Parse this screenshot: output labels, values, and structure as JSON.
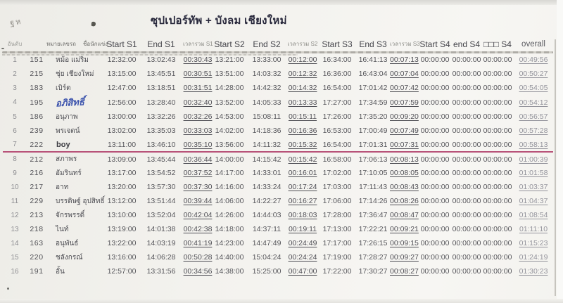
{
  "page": {
    "title": "ซุปเปอร์ทัพ + บังลม เชียงใหม่",
    "pencil_note": "ฐห",
    "ink_mark": "๑"
  },
  "colors": {
    "divider_line": "#b85379",
    "handwriting_blue": "#3d54ad",
    "paper": "#f3f2ee"
  },
  "table": {
    "headers": {
      "rank": "อันดับ",
      "car_number": "หมายเลขรถ",
      "racer_name": "ชื่อนักแข่ง",
      "start_s1": "Start S1",
      "end_s1": "End S1",
      "total_s1": "เวลารวม S1",
      "start_s2": "Start S2",
      "end_s2": "End S2",
      "total_s2": "เวลารวม S2",
      "start_s3": "Start S3",
      "end_s3": "End S3",
      "total_s3": "เวลารวม S3",
      "start_s4": "Start S4",
      "end_s4": "end S4",
      "total_s4": "□□□ S4",
      "overall": "overall"
    },
    "rows": [
      {
        "rank": "1",
        "car": "151",
        "name": "หม้อ แม่ริม",
        "name_style": "print",
        "times": [
          "12:32:00",
          "13:02:43",
          "00:30:43",
          "13:21:00",
          "13:33:00",
          "00:12:00",
          "16:34:00",
          "16:41:13",
          "00:07:13",
          "00:00:00",
          "00:00:00",
          "00:00:00"
        ],
        "overall": "00:49:56",
        "divider_below": false
      },
      {
        "rank": "2",
        "car": "215",
        "name": "ชุ่ย เชียงใหม่",
        "name_style": "print",
        "times": [
          "13:15:00",
          "13:45:51",
          "00:30:51",
          "13:51:00",
          "14:03:32",
          "00:12:32",
          "16:36:00",
          "16:43:04",
          "00:07:04",
          "00:00:00",
          "00:00:00",
          "00:00:00"
        ],
        "overall": "00:50:27",
        "divider_below": false
      },
      {
        "rank": "3",
        "car": "183",
        "name": "เบิร์ด",
        "name_style": "print",
        "times": [
          "12:47:00",
          "13:18:51",
          "00:31:51",
          "14:28:00",
          "14:42:32",
          "00:14:32",
          "16:54:00",
          "17:01:42",
          "00:07:42",
          "00:00:00",
          "00:00:00",
          "00:00:00"
        ],
        "overall": "00:54:05",
        "divider_below": false
      },
      {
        "rank": "4",
        "car": "195",
        "name": "อภิสิทธิ์",
        "name_style": "handwritten",
        "times": [
          "12:56:00",
          "13:28:40",
          "00:32:40",
          "13:52:00",
          "14:05:33",
          "00:13:33",
          "17:27:00",
          "17:34:59",
          "00:07:59",
          "00:00:00",
          "00:00:00",
          "00:00:00"
        ],
        "overall": "00:54:12",
        "divider_below": false
      },
      {
        "rank": "5",
        "car": "186",
        "name": "อนุภาพ",
        "name_style": "print",
        "times": [
          "13:00:00",
          "13:32:26",
          "00:32:26",
          "14:53:00",
          "15:08:11",
          "00:15:11",
          "17:26:00",
          "17:35:20",
          "00:09:20",
          "00:00:00",
          "00:00:00",
          "00:00:00"
        ],
        "overall": "00:56:57",
        "divider_below": false
      },
      {
        "rank": "6",
        "car": "239",
        "name": "พรเจตน์",
        "name_style": "print",
        "times": [
          "13:02:00",
          "13:35:03",
          "00:33:03",
          "14:02:00",
          "14:18:36",
          "00:16:36",
          "16:53:00",
          "17:00:49",
          "00:07:49",
          "00:00:00",
          "00:00:00",
          "00:00:00"
        ],
        "overall": "00:57:28",
        "divider_below": false
      },
      {
        "rank": "7",
        "car": "222",
        "name": "boy",
        "name_style": "latin",
        "times": [
          "13:11:00",
          "13:46:10",
          "00:35:10",
          "13:56:00",
          "14:11:32",
          "00:15:32",
          "16:54:00",
          "17:01:31",
          "00:07:31",
          "00:00:00",
          "00:00:00",
          "00:00:00"
        ],
        "overall": "00:58:13",
        "divider_below": true
      },
      {
        "rank": "8",
        "car": "212",
        "name": "สภาพร",
        "name_style": "print",
        "times": [
          "13:09:00",
          "13:45:44",
          "00:36:44",
          "14:00:00",
          "14:15:42",
          "00:15:42",
          "16:58:00",
          "17:06:13",
          "00:08:13",
          "00:00:00",
          "00:00:00",
          "00:00:00"
        ],
        "overall": "01:00:39",
        "divider_below": false
      },
      {
        "rank": "9",
        "car": "216",
        "name": "อัมรินทร์",
        "name_style": "print",
        "times": [
          "13:17:00",
          "13:54:52",
          "00:37:52",
          "14:17:00",
          "14:33:01",
          "00:16:01",
          "17:02:00",
          "17:10:05",
          "00:08:05",
          "00:00:00",
          "00:00:00",
          "00:00:00"
        ],
        "overall": "01:01:58",
        "divider_below": false
      },
      {
        "rank": "10",
        "car": "217",
        "name": "อาท",
        "name_style": "print",
        "times": [
          "13:20:00",
          "13:57:30",
          "00:37:30",
          "14:16:00",
          "14:33:24",
          "00:17:24",
          "17:03:00",
          "17:11:43",
          "00:08:43",
          "00:00:00",
          "00:00:00",
          "00:00:00"
        ],
        "overall": "01:03:37",
        "divider_below": false
      },
      {
        "rank": "11",
        "car": "229",
        "name": "บรรดิษฐ์ อุปสิทธิ์",
        "name_style": "print",
        "times": [
          "13:12:00",
          "13:51:44",
          "00:39:44",
          "14:06:00",
          "14:22:27",
          "00:16:27",
          "17:06:00",
          "17:14:26",
          "00:08:26",
          "00:00:00",
          "00:00:00",
          "00:00:00"
        ],
        "overall": "01:04:37",
        "divider_below": false
      },
      {
        "rank": "12",
        "car": "213",
        "name": "จักรพรรดิ์",
        "name_style": "print",
        "times": [
          "13:10:00",
          "13:52:04",
          "00:42:04",
          "14:26:00",
          "14:44:03",
          "00:18:03",
          "17:28:00",
          "17:36:47",
          "00:08:47",
          "00:00:00",
          "00:00:00",
          "00:00:00"
        ],
        "overall": "01:08:54",
        "divider_below": false
      },
      {
        "rank": "13",
        "car": "218",
        "name": "ไนท์",
        "name_style": "print",
        "times": [
          "13:19:00",
          "14:01:38",
          "00:42:38",
          "14:18:00",
          "14:37:11",
          "00:19:11",
          "17:13:00",
          "17:22:21",
          "00:09:21",
          "00:00:00",
          "00:00:00",
          "00:00:00"
        ],
        "overall": "01:11:10",
        "divider_below": false
      },
      {
        "rank": "14",
        "car": "163",
        "name": "อนุพันธ์",
        "name_style": "print",
        "times": [
          "13:22:00",
          "14:03:19",
          "00:41:19",
          "14:23:00",
          "14:47:49",
          "00:24:49",
          "17:17:00",
          "17:26:15",
          "00:09:15",
          "00:00:00",
          "00:00:00",
          "00:00:00"
        ],
        "overall": "01:15:23",
        "divider_below": false
      },
      {
        "rank": "15",
        "car": "220",
        "name": "ชลังกรณ์",
        "name_style": "print",
        "times": [
          "13:16:00",
          "14:06:28",
          "00:50:28",
          "14:40:00",
          "15:04:24",
          "00:24:24",
          "17:19:00",
          "17:28:27",
          "00:09:27",
          "00:00:00",
          "00:00:00",
          "00:00:00"
        ],
        "overall": "01:24:19",
        "divider_below": false
      },
      {
        "rank": "16",
        "car": "191",
        "name": "อั้น",
        "name_style": "print",
        "times": [
          "12:57:00",
          "13:31:56",
          "00:34:56",
          "14:38:00",
          "15:25:00",
          "00:47:00",
          "17:22:00",
          "17:30:27",
          "00:08:27",
          "00:00:00",
          "00:00:00",
          "00:00:00"
        ],
        "overall": "01:30:23",
        "divider_below": false
      }
    ]
  }
}
